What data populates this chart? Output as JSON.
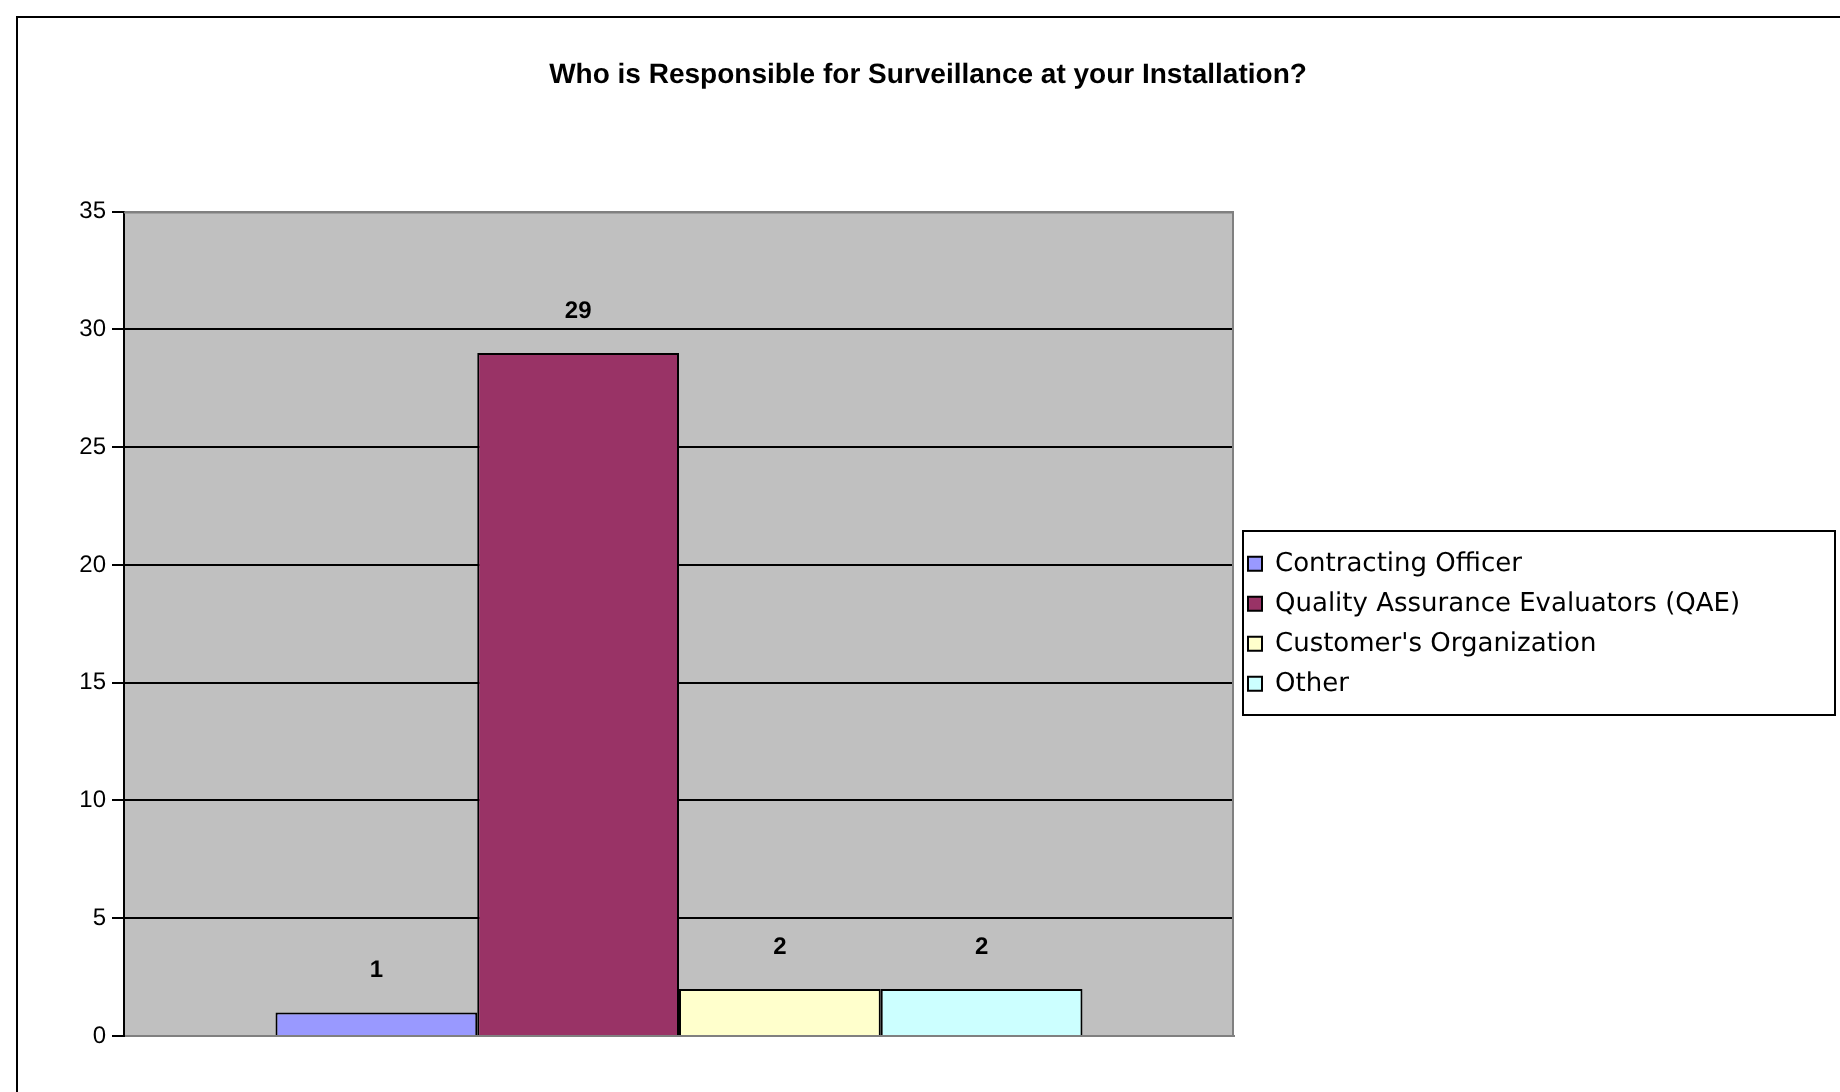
{
  "chart_data": {
    "type": "bar",
    "title": "Who is Responsible for Surveillance at your Installation?",
    "categories": [
      null
    ],
    "series": [
      {
        "name": "Contracting Officer",
        "color": "#9999ff",
        "values": [
          1
        ]
      },
      {
        "name": "Quality Assurance Evaluators (QAE)",
        "color": "#993366",
        "values": [
          29
        ]
      },
      {
        "name": "Customer's Organization",
        "color": "#ffffcc",
        "values": [
          2
        ]
      },
      {
        "name": "Other",
        "color": "#ccffff",
        "values": [
          2
        ]
      }
    ],
    "ylim": [
      0,
      35
    ],
    "yticks": [
      0,
      5,
      10,
      15,
      20,
      25,
      30,
      35
    ],
    "grid": "y",
    "legend": "right",
    "data_labels": true,
    "tick_labels": "y"
  }
}
